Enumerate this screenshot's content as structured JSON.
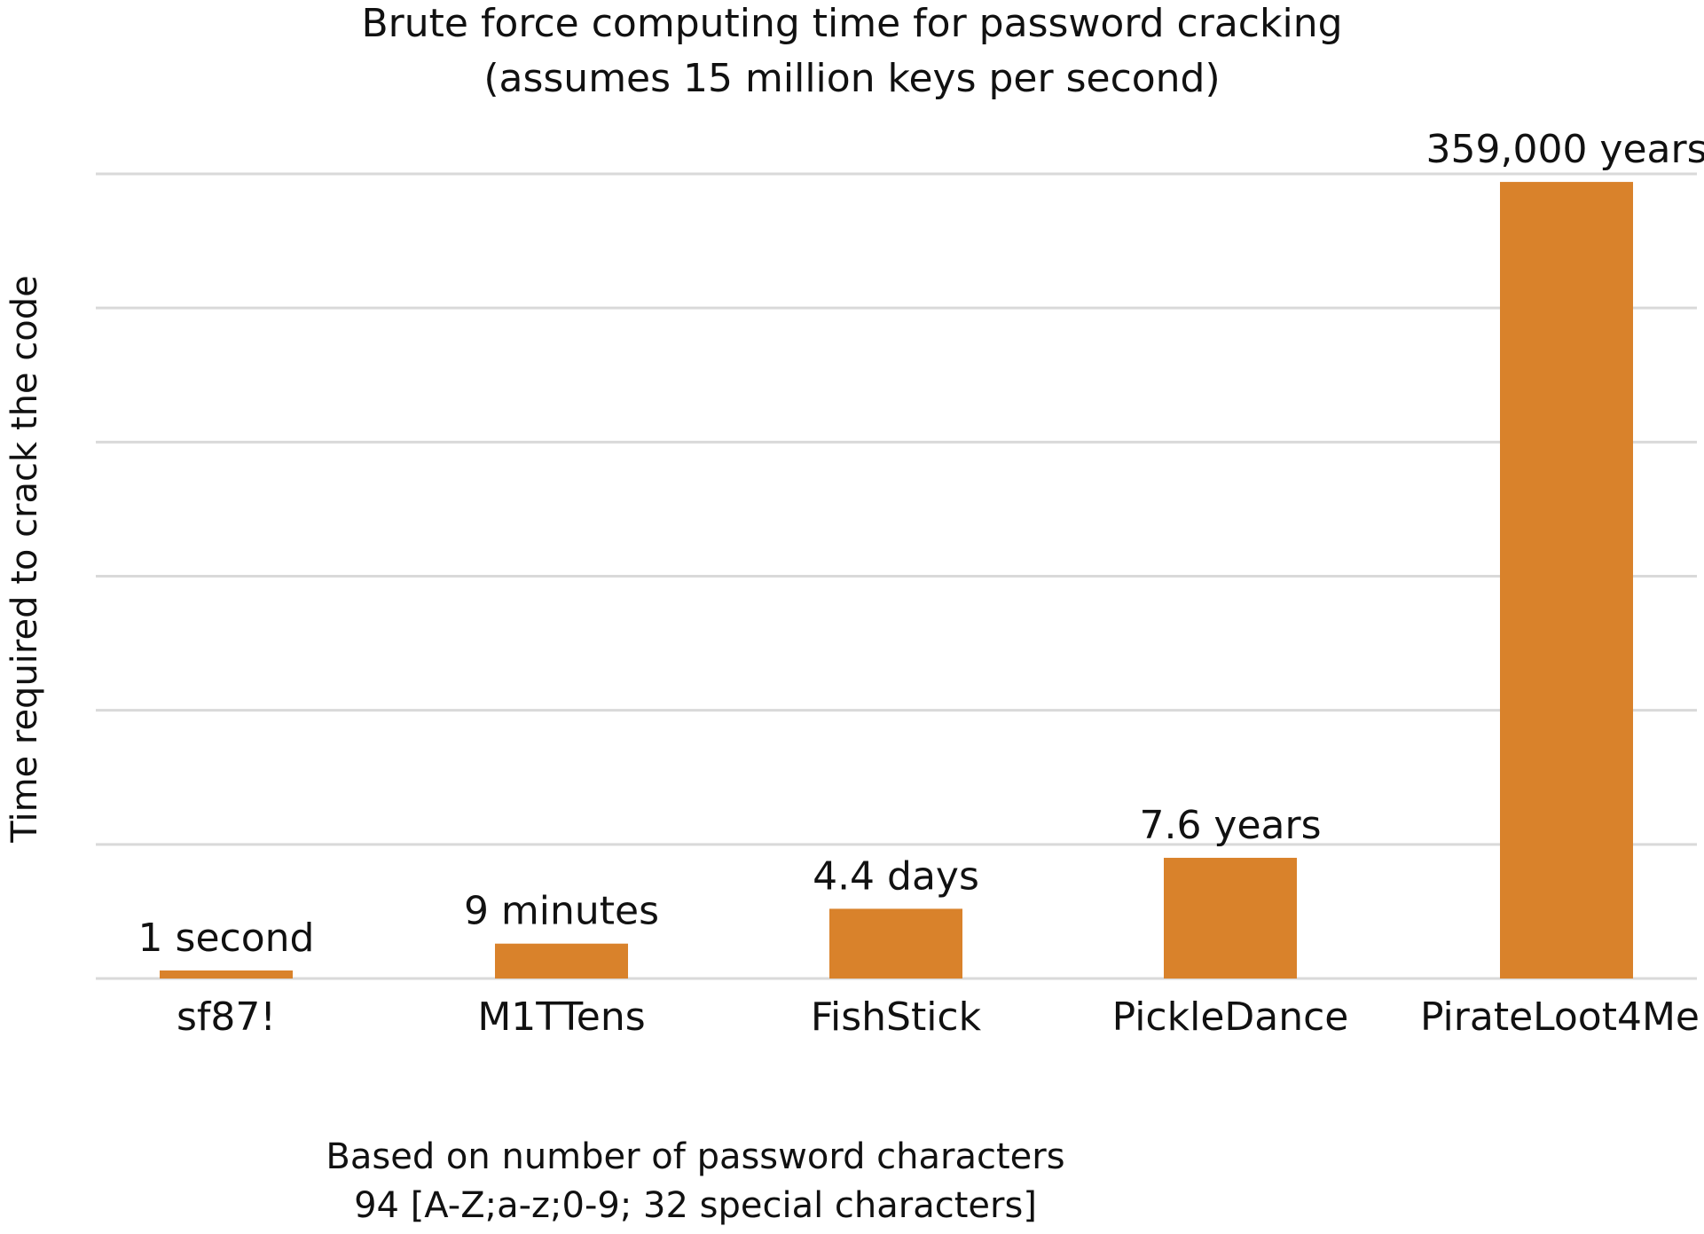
{
  "chart_data": {
    "type": "bar",
    "title": "Brute force computing time for password cracking",
    "subtitle": "(assumes 15 million keys per second)",
    "ylabel": "Time required to crack the code",
    "xlabel": "Based on number of password characters",
    "xlabel_line2": "94 [A-Z;a-z;0-9; 32 special characters]",
    "categories": [
      "sf87!",
      "M1TTens",
      "FishStick",
      "PickleDance",
      "PirateLoot4Me"
    ],
    "values": [
      0.06,
      0.26,
      0.52,
      0.9,
      5.94
    ],
    "data_labels": [
      "1 second",
      "9 minutes",
      "4.4 days",
      "7.6 years",
      "359,000 years"
    ],
    "ylim": [
      0,
      6
    ],
    "grid": true,
    "y_tick_labels_shown": false,
    "bar_color": "#d9822b",
    "gridline_color": "#d9d9d9"
  }
}
